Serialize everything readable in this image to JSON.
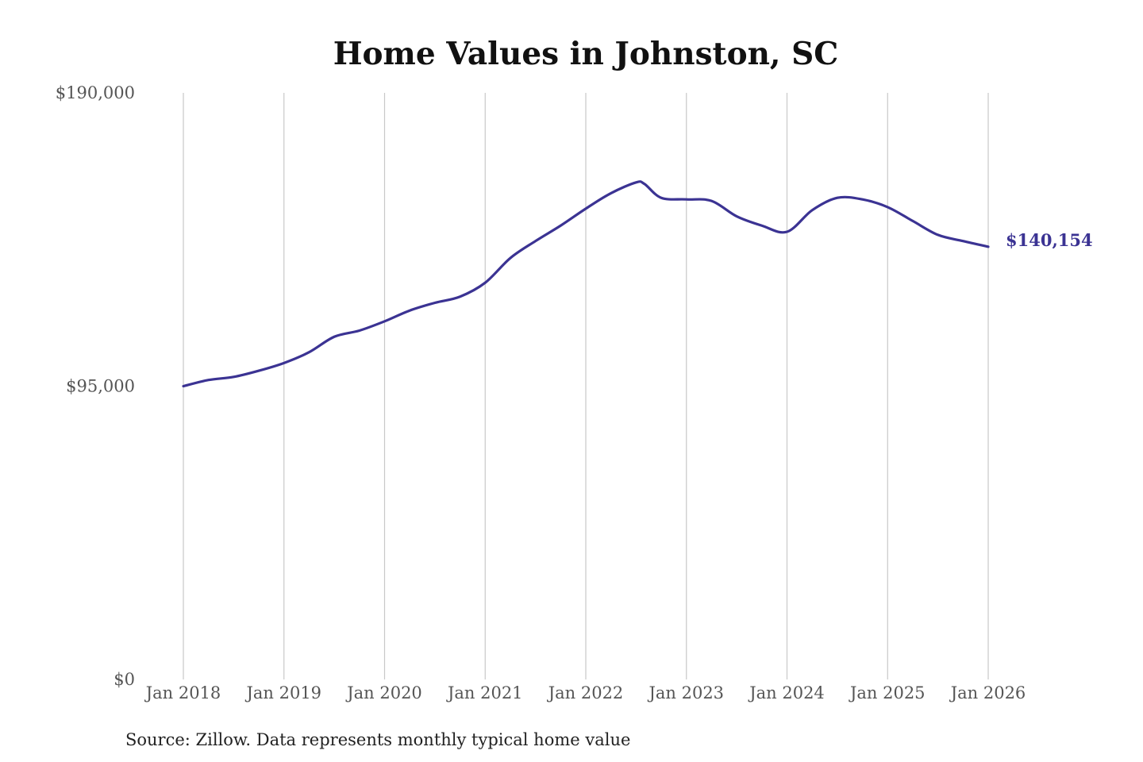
{
  "chart_data": {
    "type": "line",
    "title": "Home Values in Johnston, SC",
    "xlabel": "",
    "ylabel": "",
    "x_ticks": [
      "Jan 2018",
      "Jan 2019",
      "Jan 2020",
      "Jan 2021",
      "Jan 2022",
      "Jan 2023",
      "Jan 2024",
      "Jan 2025",
      "Jan 2026"
    ],
    "y_ticks": [
      "$0",
      "$95,000",
      "$190,000"
    ],
    "ylim": [
      0,
      190000
    ],
    "xlim": [
      "2018-01",
      "2026-01"
    ],
    "grid": "vertical",
    "series": [
      {
        "color": "#3b3393",
        "x": [
          "2018-01",
          "2018-04",
          "2018-07",
          "2018-10",
          "2019-01",
          "2019-04",
          "2019-07",
          "2019-10",
          "2020-01",
          "2020-04",
          "2020-07",
          "2020-10",
          "2021-01",
          "2021-04",
          "2021-07",
          "2021-10",
          "2022-01",
          "2022-04",
          "2022-07",
          "2022-08",
          "2022-10",
          "2023-01",
          "2023-04",
          "2023-07",
          "2023-10",
          "2024-01",
          "2024-04",
          "2024-07",
          "2024-10",
          "2025-01",
          "2025-04",
          "2025-07",
          "2025-10",
          "2026-01"
        ],
        "values": [
          95000,
          97000,
          98000,
          100000,
          102500,
          106000,
          111000,
          113000,
          116000,
          119500,
          122000,
          124000,
          128500,
          136500,
          142000,
          147000,
          152500,
          157500,
          161000,
          160500,
          156000,
          155500,
          155000,
          150000,
          147000,
          145000,
          152000,
          156000,
          155500,
          153000,
          148500,
          144000,
          142000,
          140154
        ]
      }
    ],
    "end_label": "$140,154",
    "source_note": "Source: Zillow. Data represents monthly typical home value"
  }
}
